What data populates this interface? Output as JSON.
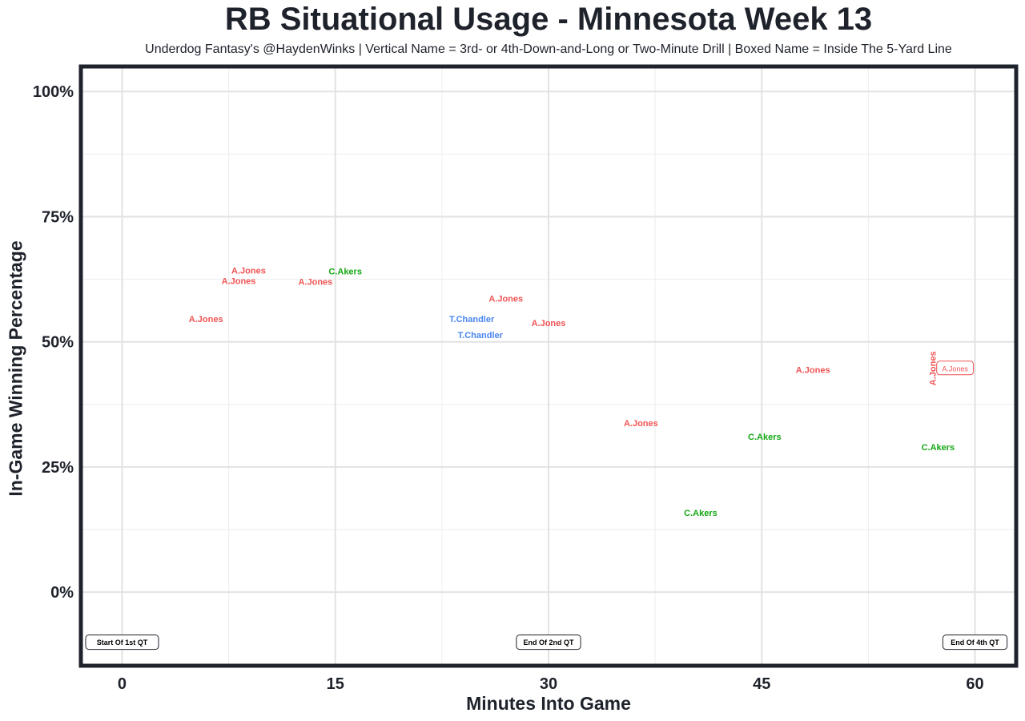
{
  "chart_data": {
    "type": "scatter",
    "title": "RB Situational Usage - Minnesota Week 13",
    "subtitle": "Underdog Fantasy's @HaydenWinks | Vertical Name = 3rd- or 4th-Down-and-Long or Two-Minute Drill | Boxed Name = Inside The 5-Yard Line",
    "xlabel": "Minutes Into Game",
    "ylabel": "In-Game Winning Percentage",
    "xlim": [
      -2.9,
      62.9
    ],
    "ylim": [
      -14.7,
      105
    ],
    "x_ticks": [
      0,
      15,
      30,
      45,
      60
    ],
    "x_tick_labels": [
      "0",
      "15",
      "30",
      "45",
      "60"
    ],
    "y_ticks": [
      0,
      25,
      50,
      75,
      100
    ],
    "y_tick_labels": [
      "0%",
      "25%",
      "50%",
      "75%",
      "100%"
    ],
    "grid": true,
    "colors": {
      "A.Jones": "#f05454",
      "C.Akers": "#14a814",
      "T.Chandler": "#4a86f0"
    },
    "points": [
      {
        "label": "A.Jones",
        "x": 5.9,
        "y": 54.6,
        "style": "normal"
      },
      {
        "label": "A.Jones",
        "x": 8.9,
        "y": 64.3,
        "style": "normal"
      },
      {
        "label": "A.Jones",
        "x": 8.2,
        "y": 62.7,
        "style": "normal"
      },
      {
        "label": "A.Jones",
        "x": 13.6,
        "y": 62.0,
        "style": "normal"
      },
      {
        "label": "C.Akers",
        "x": 15.7,
        "y": 64.1,
        "style": "normal"
      },
      {
        "label": "A.Jones",
        "x": 27.0,
        "y": 58.7,
        "style": "normal"
      },
      {
        "label": "T.Chandler",
        "x": 24.6,
        "y": 54.6,
        "style": "normal"
      },
      {
        "label": "T.Chandler",
        "x": 25.2,
        "y": 51.4,
        "style": "normal"
      },
      {
        "label": "A.Jones",
        "x": 30.0,
        "y": 53.8,
        "style": "normal"
      },
      {
        "label": "A.Jones",
        "x": 36.5,
        "y": 33.8,
        "style": "normal"
      },
      {
        "label": "C.Akers",
        "x": 40.7,
        "y": 15.9,
        "style": "normal"
      },
      {
        "label": "C.Akers",
        "x": 45.2,
        "y": 31.1,
        "style": "normal"
      },
      {
        "label": "A.Jones",
        "x": 48.6,
        "y": 44.4,
        "style": "normal"
      },
      {
        "label": "C.Akers",
        "x": 57.4,
        "y": 29.0,
        "style": "normal"
      },
      {
        "label": "A.Jones",
        "x": 58.7,
        "y": 44.7,
        "style": "vertical"
      },
      {
        "label": "A.Jones",
        "x": 58.6,
        "y": 44.7,
        "style": "boxed"
      }
    ],
    "annotations": [
      {
        "text": "Start Of 1st QT",
        "x": 0,
        "y": -10
      },
      {
        "text": "End Of 2nd QT",
        "x": 30,
        "y": -10
      },
      {
        "text": "End Of 4th QT",
        "x": 60,
        "y": -10
      }
    ]
  }
}
